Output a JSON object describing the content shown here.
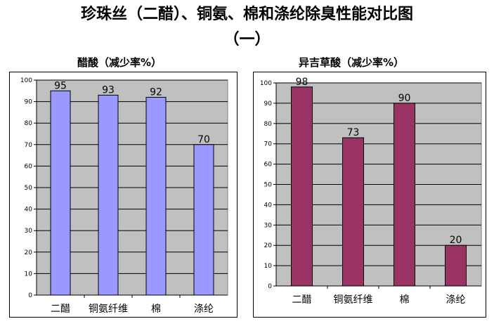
{
  "header": {
    "title_line1": "珍珠丝（二醋）、铜氨、棉和涤纶除臭性能对比图",
    "title_line2": "（一）"
  },
  "chart_data": [
    {
      "type": "bar",
      "title": "醋酸（减少率%）",
      "categories": [
        "二醋",
        "铜氨纤维",
        "棉",
        "涤纶"
      ],
      "values": [
        95,
        93,
        92,
        70
      ],
      "ylim": [
        0,
        100
      ],
      "yticks": [
        0,
        10,
        20,
        30,
        40,
        50,
        60,
        70,
        80,
        90,
        100
      ],
      "bar_color": "#9999FF",
      "plot_bg": "#C0C0C0",
      "grid": true
    },
    {
      "type": "bar",
      "title": "异吉草酸（减少率%）",
      "categories": [
        "二醋",
        "铜氨纤维",
        "棉",
        "涤纶"
      ],
      "values": [
        98,
        73,
        90,
        20
      ],
      "ylim": [
        0,
        100
      ],
      "yticks": [
        0,
        10,
        20,
        30,
        40,
        50,
        60,
        70,
        80,
        90,
        100
      ],
      "bar_color": "#993366",
      "plot_bg": "#C0C0C0",
      "grid": true
    }
  ]
}
